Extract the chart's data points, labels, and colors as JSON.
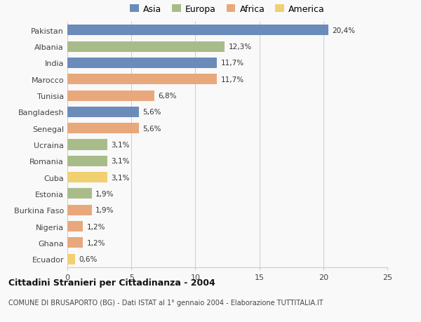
{
  "categories": [
    "Pakistan",
    "Albania",
    "India",
    "Marocco",
    "Tunisia",
    "Bangladesh",
    "Senegal",
    "Ucraina",
    "Romania",
    "Cuba",
    "Estonia",
    "Burkina Faso",
    "Nigeria",
    "Ghana",
    "Ecuador"
  ],
  "values": [
    20.4,
    12.3,
    11.7,
    11.7,
    6.8,
    5.6,
    5.6,
    3.1,
    3.1,
    3.1,
    1.9,
    1.9,
    1.2,
    1.2,
    0.6
  ],
  "labels": [
    "20,4%",
    "12,3%",
    "11,7%",
    "11,7%",
    "6,8%",
    "5,6%",
    "5,6%",
    "3,1%",
    "3,1%",
    "3,1%",
    "1,9%",
    "1,9%",
    "1,2%",
    "1,2%",
    "0,6%"
  ],
  "continents": [
    "Asia",
    "Europa",
    "Asia",
    "Africa",
    "Africa",
    "Asia",
    "Africa",
    "Europa",
    "Europa",
    "America",
    "Europa",
    "Africa",
    "Africa",
    "Africa",
    "America"
  ],
  "colors": {
    "Asia": "#6b8cba",
    "Europa": "#a8bc8a",
    "Africa": "#e8a87c",
    "America": "#f0d070"
  },
  "title": "Cittadini Stranieri per Cittadinanza - 2004",
  "subtitle": "COMUNE DI BRUSAPORTO (BG) - Dati ISTAT al 1° gennaio 2004 - Elaborazione TUTTITALIA.IT",
  "xlim": [
    0,
    25
  ],
  "xticks": [
    0,
    5,
    10,
    15,
    20,
    25
  ],
  "background_color": "#f9f9f9",
  "grid_color": "#cccccc",
  "bar_height": 0.65
}
